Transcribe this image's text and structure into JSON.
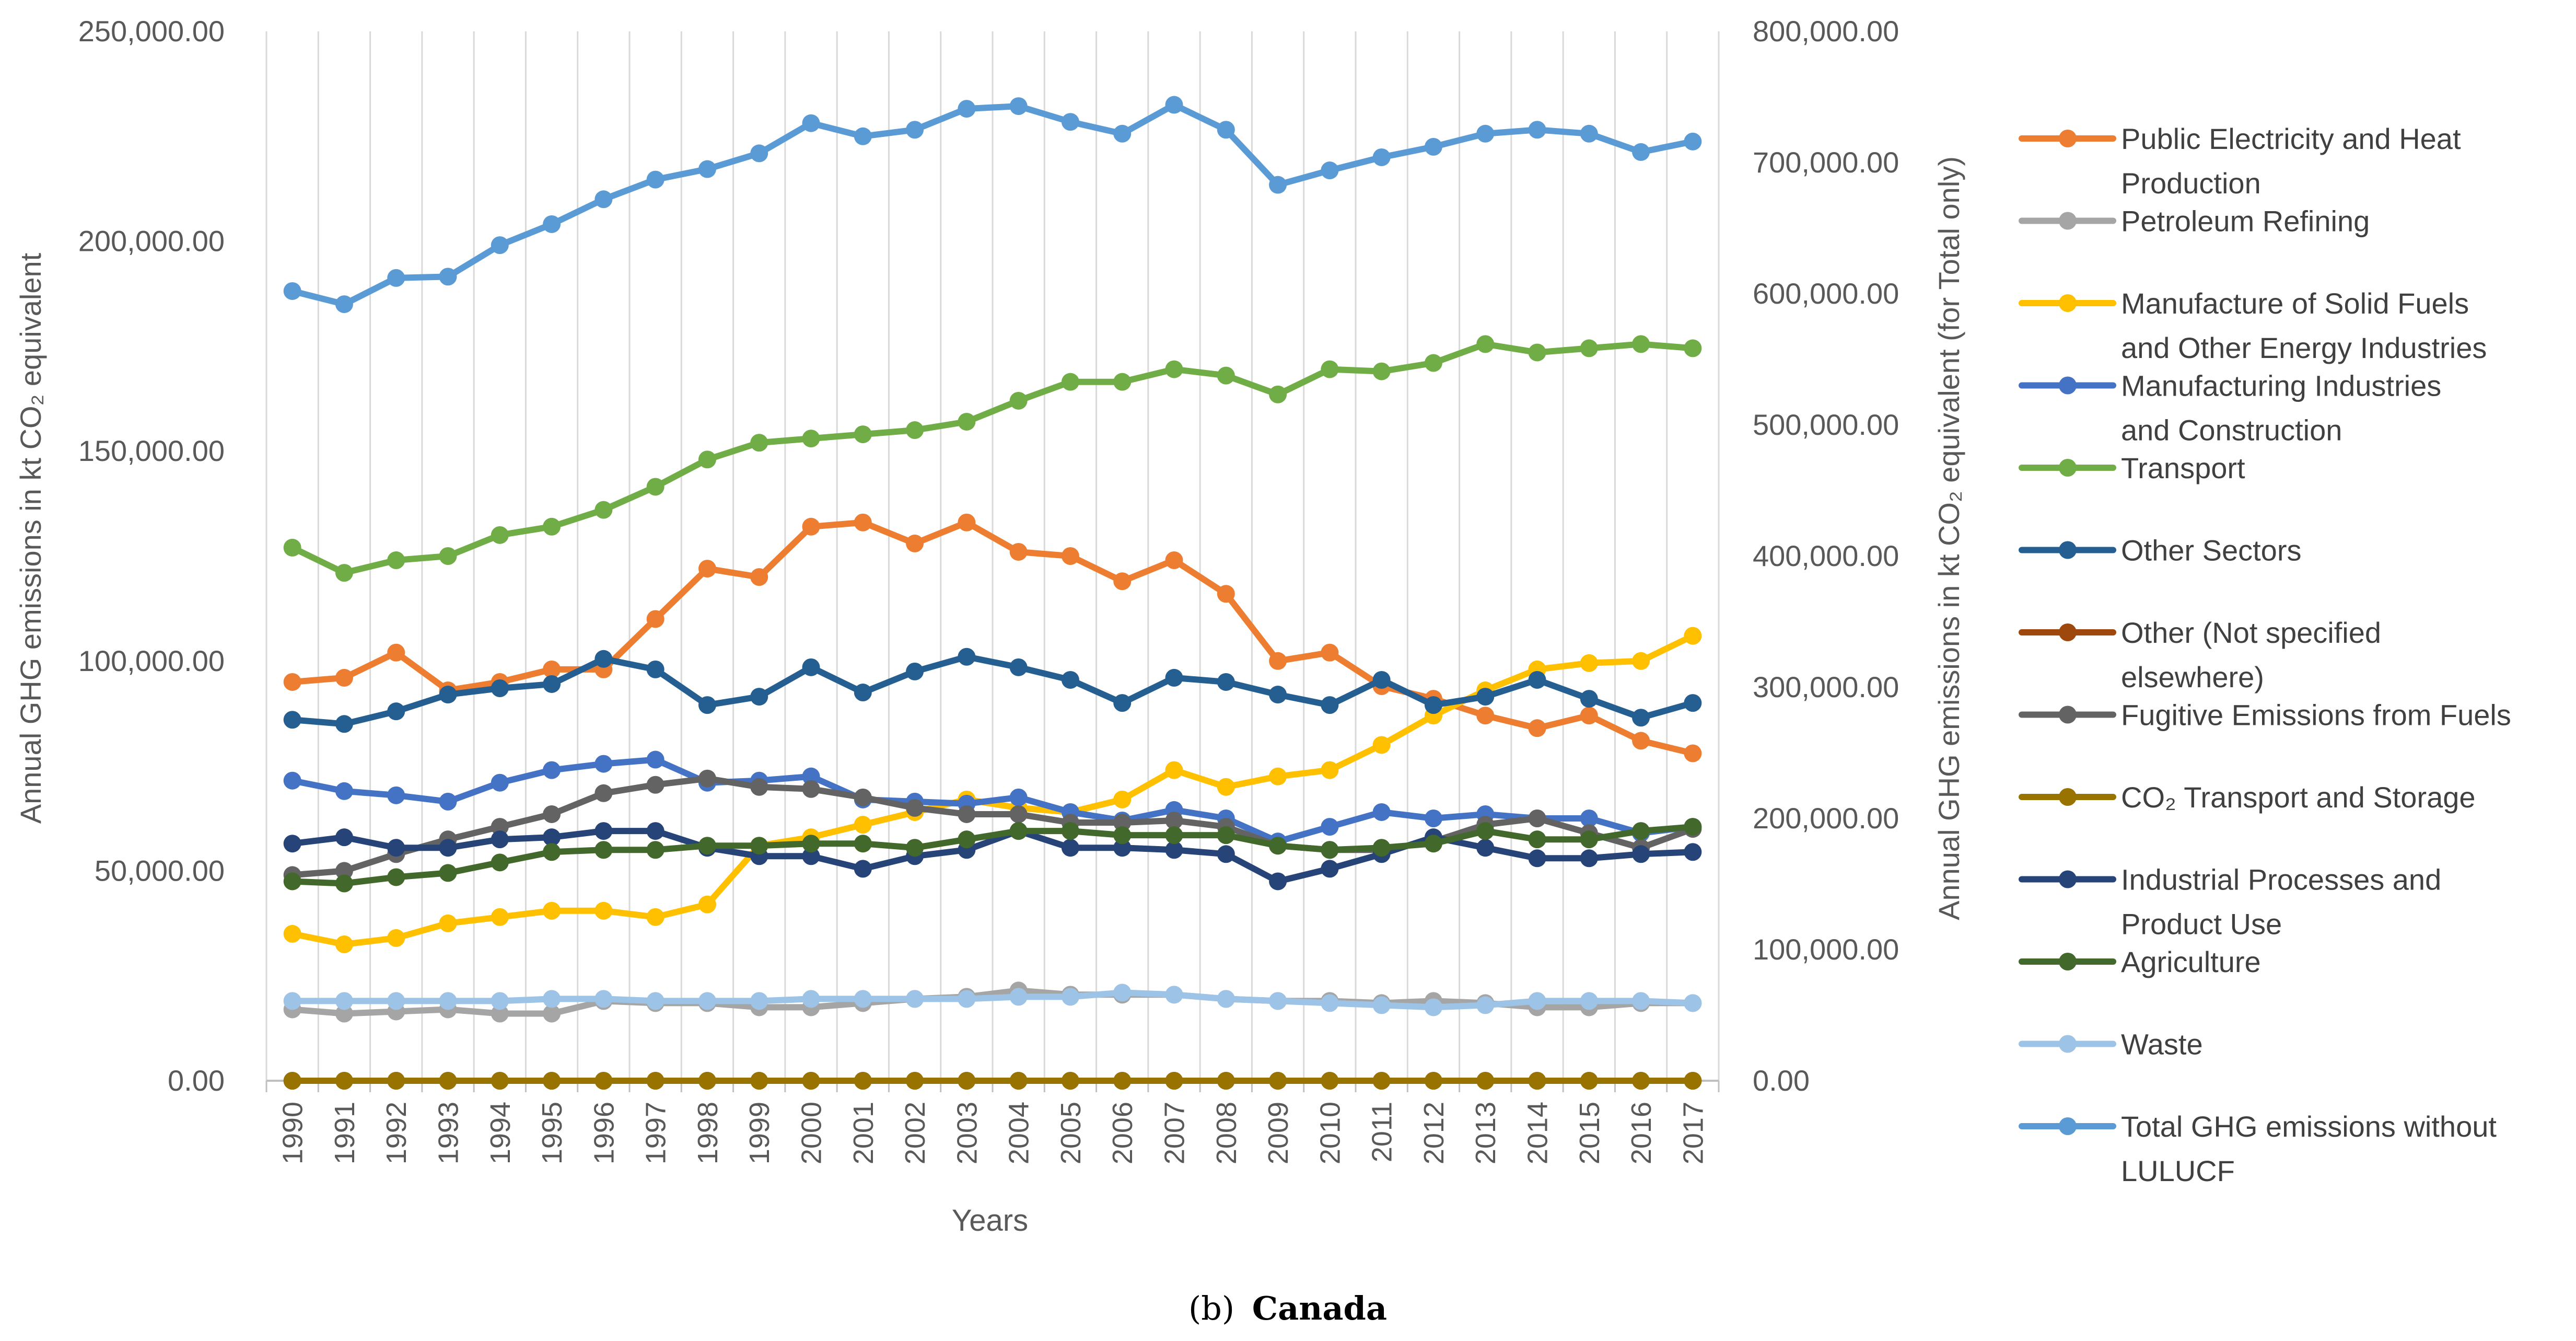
{
  "chart_data": {
    "type": "line",
    "xlabel": "Years",
    "ylabel_left": "Annual GHG emissions in kt CO₂ equivalent",
    "ylabel_right": "Annual GHG emissions in kt CO₂ equivalent (for Total only)",
    "caption_label": "(b)",
    "caption_text": "Canada",
    "ylim_left": [
      0,
      250000
    ],
    "ylim_right": [
      0,
      800000
    ],
    "left_ticks": [
      "0.00",
      "50,000.00",
      "100,000.00",
      "150,000.00",
      "200,000.00",
      "250,000.00"
    ],
    "right_ticks": [
      "0.00",
      "100,000.00",
      "200,000.00",
      "300,000.00",
      "400,000.00",
      "500,000.00",
      "600,000.00",
      "700,000.00",
      "800,000.00"
    ],
    "legend_position": "right",
    "grid": "vertical",
    "categories": [
      "1990",
      "1991",
      "1992",
      "1993",
      "1994",
      "1995",
      "1996",
      "1997",
      "1998",
      "1999",
      "2000",
      "2001",
      "2002",
      "2003",
      "2004",
      "2005",
      "2006",
      "2007",
      "2008",
      "2009",
      "2010",
      "2011",
      "2012",
      "2013",
      "2014",
      "2015",
      "2016",
      "2017"
    ],
    "series": [
      {
        "name": "Public Electricity and Heat Production",
        "legend_lines": [
          "Public Electricity and Heat",
          "Production"
        ],
        "color": "#ED7D31",
        "axis": "left",
        "values": [
          95000,
          96000,
          102000,
          93000,
          95000,
          98000,
          98000,
          110000,
          122000,
          120000,
          132000,
          133000,
          128000,
          133000,
          126000,
          125000,
          119000,
          124000,
          116000,
          100000,
          102000,
          94000,
          91000,
          87000,
          84000,
          87000,
          81000,
          78000
        ]
      },
      {
        "name": "Petroleum Refining",
        "legend_lines": [
          "Petroleum Refining"
        ],
        "color": "#A5A5A5",
        "axis": "left",
        "values": [
          17000,
          16000,
          16500,
          17000,
          16000,
          16000,
          19000,
          18500,
          18500,
          17500,
          17500,
          18500,
          19500,
          20000,
          21500,
          20500,
          20500,
          20500,
          19500,
          19000,
          19000,
          18500,
          19000,
          18500,
          17500,
          17500,
          18500,
          18500
        ]
      },
      {
        "name": "Manufacture of Solid Fuels and Other Energy Industries",
        "legend_lines": [
          "Manufacture of Solid Fuels",
          "and Other Energy Industries"
        ],
        "color": "#FFC000",
        "axis": "left",
        "values": [
          35000,
          32500,
          34000,
          37500,
          39000,
          40500,
          40500,
          39000,
          42000,
          56000,
          58000,
          61000,
          64000,
          67000,
          65000,
          64000,
          67000,
          74000,
          70000,
          72500,
          74000,
          80000,
          87000,
          93000,
          98000,
          99500,
          100000,
          106000
        ]
      },
      {
        "name": "Manufacturing Industries and Construction",
        "legend_lines": [
          "Manufacturing Industries",
          "and Construction"
        ],
        "color": "#4472C4",
        "axis": "left",
        "values": [
          71500,
          69000,
          68000,
          66500,
          71000,
          74000,
          75500,
          76500,
          71000,
          71500,
          72500,
          67000,
          66500,
          66000,
          67500,
          64000,
          62000,
          64500,
          62500,
          57000,
          60500,
          64000,
          62500,
          63500,
          62500,
          62500,
          59000,
          60500
        ]
      },
      {
        "name": "Transport",
        "legend_lines": [
          "Transport"
        ],
        "color": "#70AD47",
        "axis": "left",
        "values": [
          127000,
          121000,
          124000,
          125000,
          130000,
          132000,
          136000,
          141500,
          148000,
          152000,
          153000,
          154000,
          155000,
          157000,
          162000,
          166500,
          166500,
          169500,
          168000,
          163500,
          169500,
          169000,
          171000,
          175500,
          173500,
          174500,
          175500,
          174500
        ]
      },
      {
        "name": "Other Sectors",
        "legend_lines": [
          "Other Sectors"
        ],
        "color": "#255E91",
        "axis": "left",
        "values": [
          86000,
          85000,
          88000,
          92000,
          93500,
          94500,
          100500,
          98000,
          89500,
          91500,
          98500,
          92500,
          97500,
          101000,
          98500,
          95500,
          90000,
          96000,
          95000,
          92000,
          89500,
          95500,
          89500,
          91500,
          95500,
          91000,
          86500,
          90000
        ]
      },
      {
        "name": "Other (Not specified elsewhere)",
        "legend_lines": [
          "Other (Not specified",
          "elsewhere)"
        ],
        "color": "#9E480E",
        "axis": "left",
        "values": [
          0,
          0,
          0,
          0,
          0,
          0,
          0,
          0,
          0,
          0,
          0,
          0,
          0,
          0,
          0,
          0,
          0,
          0,
          0,
          0,
          0,
          0,
          0,
          0,
          0,
          0,
          0,
          0
        ]
      },
      {
        "name": "Fugitive Emissions from Fuels",
        "legend_lines": [
          "Fugitive Emissions from Fuels"
        ],
        "color": "#636363",
        "axis": "left",
        "values": [
          49000,
          50000,
          54000,
          57500,
          60500,
          63500,
          68500,
          70500,
          72000,
          70000,
          69500,
          67500,
          65000,
          63500,
          63500,
          61500,
          61500,
          62000,
          60500,
          56000,
          55000,
          55000,
          57000,
          61000,
          62500,
          59000,
          55500,
          60000
        ]
      },
      {
        "name": "CO₂ Transport and Storage",
        "legend_lines": [
          "CO₂ Transport and Storage"
        ],
        "color": "#997300",
        "axis": "left",
        "values": [
          0,
          0,
          0,
          0,
          0,
          0,
          0,
          0,
          0,
          0,
          0,
          0,
          0,
          0,
          0,
          0,
          0,
          0,
          0,
          0,
          0,
          0,
          0,
          0,
          0,
          0,
          0,
          0
        ]
      },
      {
        "name": "Industrial Processes and Product Use",
        "legend_lines": [
          " Industrial Processes and",
          "Product Use"
        ],
        "color": "#264478",
        "axis": "left",
        "values": [
          56500,
          58000,
          55500,
          55500,
          57500,
          58000,
          59500,
          59500,
          55500,
          53500,
          53500,
          50500,
          53500,
          55000,
          59500,
          55500,
          55500,
          55000,
          54000,
          47500,
          50500,
          54000,
          58000,
          55500,
          53000,
          53000,
          54000,
          54500
        ]
      },
      {
        "name": "Agriculture",
        "legend_lines": [
          "Agriculture"
        ],
        "color": "#43682B",
        "axis": "left",
        "values": [
          47500,
          47000,
          48500,
          49500,
          52000,
          54500,
          55000,
          55000,
          56000,
          56000,
          56500,
          56500,
          55500,
          57500,
          59500,
          59500,
          58500,
          58500,
          58500,
          56000,
          55000,
          55500,
          56500,
          59500,
          57500,
          57500,
          59500,
          60500
        ]
      },
      {
        "name": "Waste",
        "legend_lines": [
          "Waste"
        ],
        "color": "#9DC3E6",
        "axis": "left",
        "values": [
          19000,
          19000,
          19000,
          19000,
          19000,
          19500,
          19500,
          19000,
          19000,
          19000,
          19500,
          19500,
          19500,
          19500,
          20000,
          20000,
          21000,
          20500,
          19500,
          19000,
          18500,
          18000,
          17500,
          18000,
          19000,
          19000,
          19000,
          18500
        ]
      },
      {
        "name": "Total GHG emissions without LULUCF",
        "legend_lines": [
          "Total GHG emissions without",
          "LULUCF"
        ],
        "color": "#5B9BD5",
        "axis": "right",
        "values": [
          602000,
          592000,
          612000,
          613000,
          637000,
          653000,
          672000,
          687000,
          695000,
          707000,
          730000,
          720000,
          725000,
          741000,
          743000,
          731000,
          722000,
          744000,
          725000,
          683000,
          694000,
          704000,
          712000,
          722000,
          725000,
          722000,
          708000,
          716000
        ]
      }
    ]
  }
}
